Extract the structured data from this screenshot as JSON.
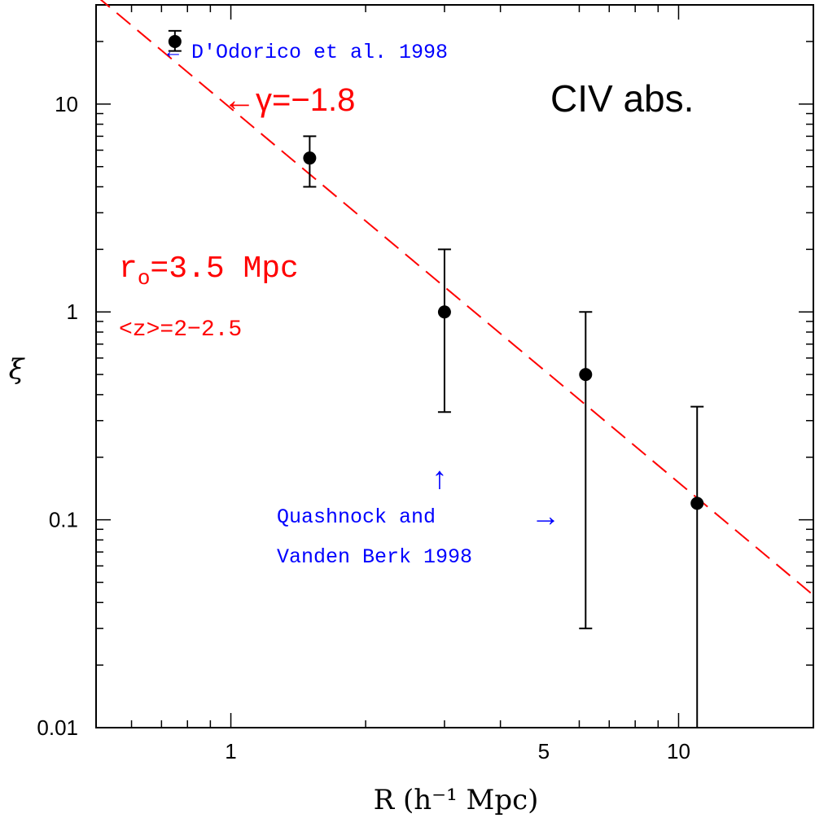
{
  "chart_data": {
    "type": "scatter",
    "xscale": "log",
    "yscale": "log",
    "xlim": [
      0.5,
      20
    ],
    "ylim": [
      0.01,
      30
    ],
    "xlabel": "R (h⁻¹ Mpc)",
    "ylabel": "ξ",
    "x_ticks": [
      {
        "value": 1,
        "label": "1"
      },
      {
        "value": 5,
        "label": "5"
      },
      {
        "value": 10,
        "label": "10"
      }
    ],
    "y_ticks": [
      {
        "value": 10,
        "label": "10"
      },
      {
        "value": 1,
        "label": "1"
      },
      {
        "value": 0.1,
        "label": "0.1"
      },
      {
        "value": 0.01,
        "label": "0.01"
      }
    ],
    "points": [
      {
        "x": 0.75,
        "y": 20,
        "err_low": 18,
        "err_high": 22.5
      },
      {
        "x": 1.5,
        "y": 5.5,
        "err_low": 4.0,
        "err_high": 7.0
      },
      {
        "x": 3.0,
        "y": 1.0,
        "err_low": 0.33,
        "err_high": 2.0
      },
      {
        "x": 6.2,
        "y": 0.5,
        "err_low": 0.03,
        "err_high": 1.0
      },
      {
        "x": 11.0,
        "y": 0.12,
        "err_low": 0.01,
        "err_high": 0.35
      }
    ],
    "fit_line": {
      "r0": 3.5,
      "gamma": -1.8,
      "color": "#ff0000",
      "style": "dashed"
    },
    "annotations": {
      "title": "CIV abs.",
      "gamma_label": "←γ=−1.8",
      "r0_main": "r",
      "r0_sub": "o",
      "r0_rest": "=3.5 Mpc",
      "z_label": "<z>=2−2.5",
      "dodorico": "← D'Odorico et al. 1998",
      "quash_line1": "Quashnock and",
      "quash_line2": "Vanden Berk 1998",
      "up_arrow": "↑",
      "right_arrow": "→"
    },
    "colors": {
      "data": "#000000",
      "fit": "#ff0000",
      "red_text": "#ff0000",
      "blue_text": "#0000ff"
    }
  }
}
